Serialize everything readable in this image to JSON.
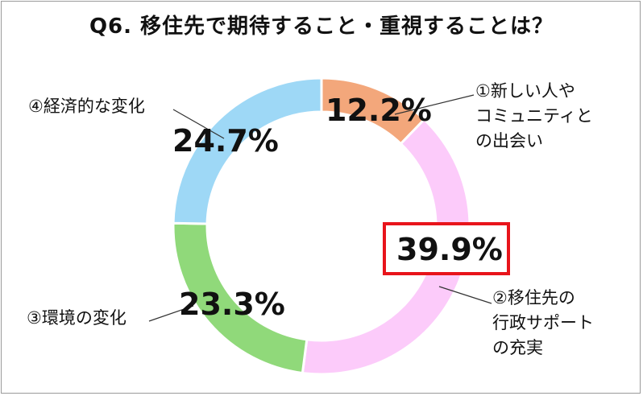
{
  "title": "Q6. 移住先で期待すること・重視することは？",
  "chart_data": {
    "type": "pie",
    "donut": true,
    "title": "Q6. 移住先で期待すること・重視することは？",
    "categories": [
      "①新しい人や\nコミュニティと\nの出会い",
      "②移住先の\n行政サポート\nの充実",
      "③環境の変化",
      "④経済的な変化"
    ],
    "values": [
      12.2,
      39.9,
      23.3,
      24.7
    ],
    "value_labels": [
      "12.2%",
      "39.9%",
      "23.3%",
      "24.7%"
    ],
    "colors": [
      "#f3a77b",
      "#fccbfa",
      "#90d97a",
      "#9ed8f6"
    ],
    "highlight_color": "#e8141b",
    "highlighted_category_index": 1
  }
}
